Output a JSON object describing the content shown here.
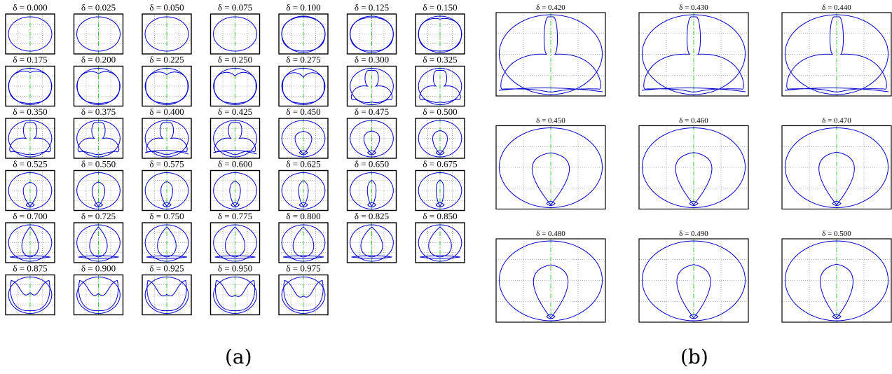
{
  "panel_a": {
    "label": "(a)",
    "titles": [
      "δ = 0.000",
      "δ = 0.025",
      "δ = 0.050",
      "δ = 0.075",
      "δ = 0.100",
      "δ = 0.125",
      "δ = 0.150",
      "δ = 0.175",
      "δ = 0.200",
      "δ = 0.225",
      "δ = 0.250",
      "δ = 0.275",
      "δ = 0.300",
      "δ = 0.325",
      "δ = 0.350",
      "δ = 0.375",
      "δ = 0.400",
      "δ = 0.425",
      "δ = 0.450",
      "δ = 0.475",
      "δ = 0.500",
      "δ = 0.525",
      "δ = 0.550",
      "δ = 0.575",
      "δ = 0.600",
      "δ = 0.625",
      "δ = 0.650",
      "δ = 0.675",
      "δ = 0.700",
      "δ = 0.725",
      "δ = 0.750",
      "δ = 0.775",
      "δ = 0.800",
      "δ = 0.825",
      "δ = 0.850",
      "δ = 0.875",
      "δ = 0.900",
      "δ = 0.925",
      "δ = 0.950",
      "δ = 0.975"
    ]
  },
  "panel_b": {
    "label": "(b)",
    "titles": [
      "δ = 0.420",
      "δ = 0.430",
      "δ = 0.440",
      "δ = 0.450",
      "δ = 0.460",
      "δ = 0.470",
      "δ = 0.480",
      "δ = 0.490",
      "δ = 0.500"
    ]
  },
  "colors": {
    "curve": "#0000cc",
    "axis": "#33cc33",
    "grid": "#777777",
    "frame": "#000000"
  }
}
